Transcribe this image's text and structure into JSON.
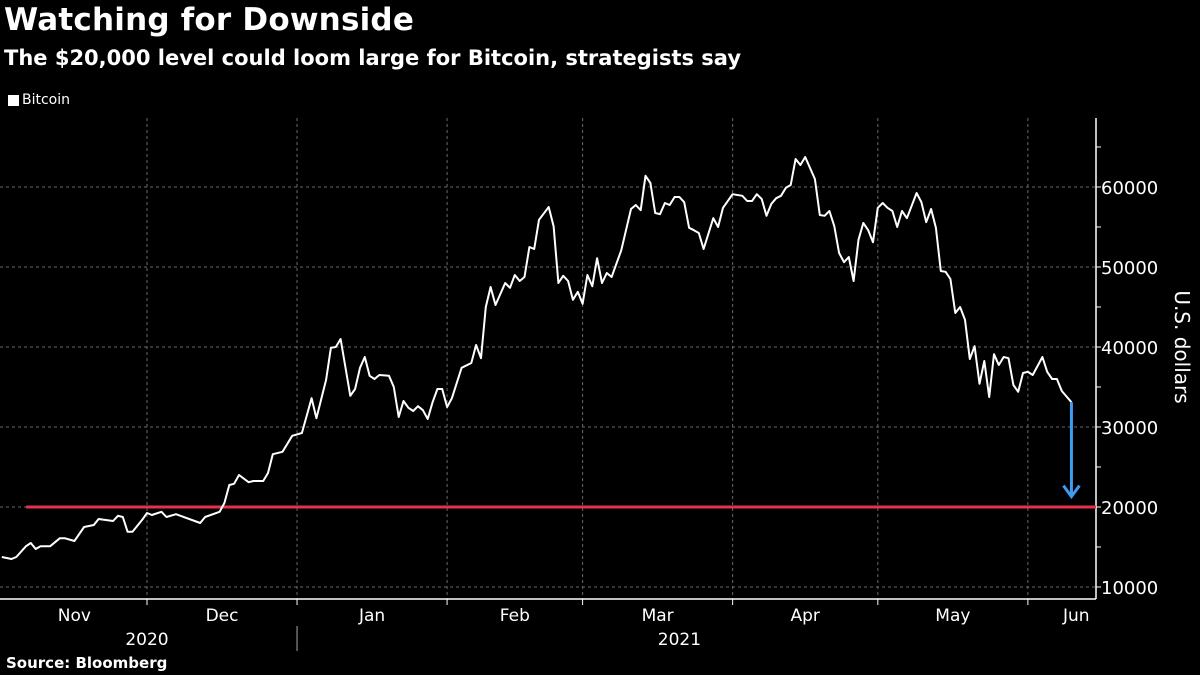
{
  "chart_data": {
    "type": "line",
    "title": "Watching for Downside",
    "subtitle": "The $20,000 level could loom large for Bitcoin, strategists say",
    "legend": [
      {
        "name": "Bitcoin",
        "color": "#ffffff"
      }
    ],
    "legend_placement": "top-left",
    "source": "Source: Bloomberg",
    "ylabel": "U.S. dollars",
    "ylim": [
      8500,
      68000
    ],
    "yticks": [
      10000,
      20000,
      30000,
      40000,
      50000,
      60000
    ],
    "ytick_labels": [
      "10000",
      "20000",
      "30000",
      "40000",
      "50000",
      "60000"
    ],
    "x_unit": "days since 2020-11-01",
    "xlim": [
      0,
      226
    ],
    "month_boundaries": [
      30,
      61,
      92,
      120,
      151,
      181,
      212
    ],
    "month_labels": [
      {
        "label": "Nov",
        "day": 15
      },
      {
        "label": "Dec",
        "day": 45.5
      },
      {
        "label": "Jan",
        "day": 76.5
      },
      {
        "label": "Feb",
        "day": 106
      },
      {
        "label": "Mar",
        "day": 135.5
      },
      {
        "label": "Apr",
        "day": 166
      },
      {
        "label": "May",
        "day": 196.5
      },
      {
        "label": "Jun",
        "day": 222
      }
    ],
    "year_labels": [
      {
        "label": "2020",
        "day": 30
      },
      {
        "label": "2021",
        "day": 140
      }
    ],
    "year_separator_day": 61,
    "grid": true,
    "reference_line": {
      "value": 20000,
      "color": "#e8304a",
      "from_day": 5
    },
    "arrow": {
      "day": 221,
      "from": 33100,
      "to": 21300,
      "color": "#3d9bf0"
    },
    "series": [
      {
        "name": "Bitcoin",
        "color": "#ffffff",
        "points": [
          [
            0,
            13750
          ],
          [
            2,
            13500
          ],
          [
            3,
            13750
          ],
          [
            5,
            15100
          ],
          [
            6,
            15500
          ],
          [
            7,
            14750
          ],
          [
            8,
            15100
          ],
          [
            10,
            15100
          ],
          [
            12,
            16100
          ],
          [
            13,
            16100
          ],
          [
            15,
            15750
          ],
          [
            17,
            17500
          ],
          [
            19,
            17750
          ],
          [
            20,
            18500
          ],
          [
            23,
            18250
          ],
          [
            24,
            18900
          ],
          [
            25,
            18750
          ],
          [
            26,
            16900
          ],
          [
            27,
            16900
          ],
          [
            29,
            18400
          ],
          [
            30,
            19250
          ],
          [
            31,
            19000
          ],
          [
            33,
            19400
          ],
          [
            34,
            18750
          ],
          [
            36,
            19100
          ],
          [
            41,
            18000
          ],
          [
            42,
            18750
          ],
          [
            45,
            19400
          ],
          [
            46,
            20500
          ],
          [
            47,
            22750
          ],
          [
            48,
            22900
          ],
          [
            49,
            24000
          ],
          [
            51,
            23100
          ],
          [
            52,
            23250
          ],
          [
            54,
            23250
          ],
          [
            55,
            24250
          ],
          [
            56,
            26600
          ],
          [
            58,
            26900
          ],
          [
            60,
            28900
          ],
          [
            62,
            29250
          ],
          [
            64,
            33600
          ],
          [
            65,
            31100
          ],
          [
            67,
            35900
          ],
          [
            68,
            39900
          ],
          [
            69,
            40000
          ],
          [
            70,
            41000
          ],
          [
            72,
            33900
          ],
          [
            73,
            34750
          ],
          [
            74,
            37400
          ],
          [
            75,
            38750
          ],
          [
            76,
            36400
          ],
          [
            77,
            36000
          ],
          [
            78,
            36500
          ],
          [
            80,
            36400
          ],
          [
            81,
            35000
          ],
          [
            82,
            31250
          ],
          [
            83,
            33250
          ],
          [
            84,
            32400
          ],
          [
            85,
            32000
          ],
          [
            86,
            32600
          ],
          [
            87,
            32100
          ],
          [
            88,
            31000
          ],
          [
            89,
            33100
          ],
          [
            90,
            34750
          ],
          [
            91,
            34750
          ],
          [
            92,
            32500
          ],
          [
            93,
            33600
          ],
          [
            95,
            37400
          ],
          [
            97,
            38000
          ],
          [
            98,
            40250
          ],
          [
            99,
            38600
          ],
          [
            100,
            45000
          ],
          [
            101,
            47500
          ],
          [
            102,
            45250
          ],
          [
            104,
            48000
          ],
          [
            105,
            47400
          ],
          [
            106,
            49000
          ],
          [
            107,
            48250
          ],
          [
            108,
            48750
          ],
          [
            109,
            52500
          ],
          [
            110,
            52250
          ],
          [
            111,
            55900
          ],
          [
            113,
            57500
          ],
          [
            114,
            55100
          ],
          [
            115,
            48000
          ],
          [
            116,
            48900
          ],
          [
            117,
            48250
          ],
          [
            118,
            45900
          ],
          [
            119,
            46900
          ],
          [
            120,
            45400
          ],
          [
            121,
            49000
          ],
          [
            122,
            47600
          ],
          [
            123,
            51100
          ],
          [
            124,
            48000
          ],
          [
            125,
            49250
          ],
          [
            126,
            48750
          ],
          [
            128,
            52100
          ],
          [
            130,
            57250
          ],
          [
            131,
            57750
          ],
          [
            132,
            57100
          ],
          [
            133,
            61400
          ],
          [
            134,
            60500
          ],
          [
            135,
            56750
          ],
          [
            136,
            56600
          ],
          [
            137,
            58000
          ],
          [
            138,
            57750
          ],
          [
            139,
            58750
          ],
          [
            140,
            58750
          ],
          [
            141,
            58100
          ],
          [
            142,
            54900
          ],
          [
            143,
            54600
          ],
          [
            144,
            54250
          ],
          [
            145,
            52250
          ],
          [
            147,
            56100
          ],
          [
            148,
            55000
          ],
          [
            149,
            57400
          ],
          [
            151,
            59100
          ],
          [
            153,
            58900
          ],
          [
            154,
            58250
          ],
          [
            155,
            58250
          ],
          [
            156,
            59100
          ],
          [
            157,
            58500
          ],
          [
            158,
            56400
          ],
          [
            159,
            57900
          ],
          [
            160,
            58600
          ],
          [
            161,
            58900
          ],
          [
            162,
            59900
          ],
          [
            163,
            60250
          ],
          [
            164,
            63500
          ],
          [
            165,
            62750
          ],
          [
            166,
            63750
          ],
          [
            168,
            61000
          ],
          [
            169,
            56500
          ],
          [
            170,
            56400
          ],
          [
            171,
            57000
          ],
          [
            172,
            55100
          ],
          [
            173,
            51750
          ],
          [
            174,
            50600
          ],
          [
            175,
            51250
          ],
          [
            176,
            48250
          ],
          [
            177,
            53400
          ],
          [
            178,
            55500
          ],
          [
            179,
            54600
          ],
          [
            180,
            53100
          ],
          [
            181,
            57400
          ],
          [
            182,
            58000
          ],
          [
            183,
            57400
          ],
          [
            184,
            57000
          ],
          [
            185,
            55000
          ],
          [
            186,
            57000
          ],
          [
            187,
            56100
          ],
          [
            189,
            59250
          ],
          [
            190,
            58100
          ],
          [
            191,
            55600
          ],
          [
            192,
            57250
          ],
          [
            193,
            54900
          ],
          [
            194,
            49500
          ],
          [
            195,
            49400
          ],
          [
            196,
            48500
          ],
          [
            197,
            44250
          ],
          [
            198,
            45000
          ],
          [
            199,
            43400
          ],
          [
            200,
            38500
          ],
          [
            201,
            40100
          ],
          [
            202,
            35400
          ],
          [
            203,
            38250
          ],
          [
            204,
            33750
          ],
          [
            205,
            39100
          ],
          [
            206,
            37750
          ],
          [
            207,
            38750
          ],
          [
            208,
            38600
          ],
          [
            209,
            35250
          ],
          [
            210,
            34400
          ],
          [
            211,
            36750
          ],
          [
            212,
            36900
          ],
          [
            213,
            36500
          ],
          [
            215,
            38750
          ],
          [
            216,
            36900
          ],
          [
            217,
            36000
          ],
          [
            218,
            36000
          ],
          [
            219,
            34500
          ],
          [
            221,
            33100
          ]
        ]
      }
    ]
  }
}
